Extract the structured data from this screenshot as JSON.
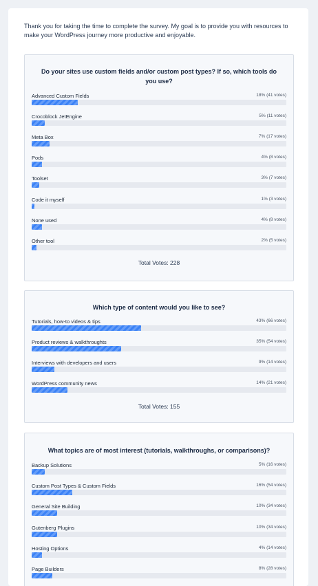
{
  "intro": "Thank you for taking the time to complete the survey. My goal is to provide you with resources to make your WordPress journey more productive and enjoyable.",
  "colors": {
    "bar": "#3b82f6",
    "track": "#e6e9ef",
    "panel": "#f6f8fb"
  },
  "polls": [
    {
      "question": "Do your sites use custom fields and/or custom post types? If so, which tools do you use?",
      "total": "Total Votes: 228",
      "options": [
        {
          "label": "Advanced Custom Fields",
          "votes": "18% (41 votes)",
          "percent": 18
        },
        {
          "label": "Crocoblock JetEngine",
          "votes": "5% (11 votes)",
          "percent": 5
        },
        {
          "label": "Meta Box",
          "votes": "7% (17 votes)",
          "percent": 7
        },
        {
          "label": "Pods",
          "votes": "4% (8 votes)",
          "percent": 4
        },
        {
          "label": "Toolset",
          "votes": "3% (7 votes)",
          "percent": 3
        },
        {
          "label": "Code it myself",
          "votes": "1% (3 votes)",
          "percent": 1
        },
        {
          "label": "None used",
          "votes": "4% (8 votes)",
          "percent": 4
        },
        {
          "label": "Other tool",
          "votes": "2% (5 votes)",
          "percent": 2
        }
      ]
    },
    {
      "question": "Which type of content would you like to see?",
      "total": "Total Votes: 155",
      "options": [
        {
          "label": "Tutorials, how-to videos & tips",
          "votes": "43% (66 votes)",
          "percent": 43
        },
        {
          "label": "Product reviews & walkthroughts",
          "votes": "35% (54 votes)",
          "percent": 35
        },
        {
          "label": "Interviews with developers and users",
          "votes": "9% (14 votes)",
          "percent": 9
        },
        {
          "label": "WordPress community news",
          "votes": "14% (21 votes)",
          "percent": 14
        }
      ]
    },
    {
      "question": "What topics are of most interest (tutorials, walkthroughs, or comparisons)?",
      "options": [
        {
          "label": "Backup Solutions",
          "votes": "5% (16 votes)",
          "percent": 5
        },
        {
          "label": "Custom Post Types & Custom Fields",
          "votes": "16% (54 votes)",
          "percent": 16
        },
        {
          "label": "General Site Building",
          "votes": "10% (34 votes)",
          "percent": 10
        },
        {
          "label": "Gutenberg Plugins",
          "votes": "10% (34 votes)",
          "percent": 10
        },
        {
          "label": "Hosting Options",
          "votes": "4% (14 votes)",
          "percent": 4
        },
        {
          "label": "Page Builders",
          "votes": "8% (28 votes)",
          "percent": 8
        }
      ]
    }
  ]
}
